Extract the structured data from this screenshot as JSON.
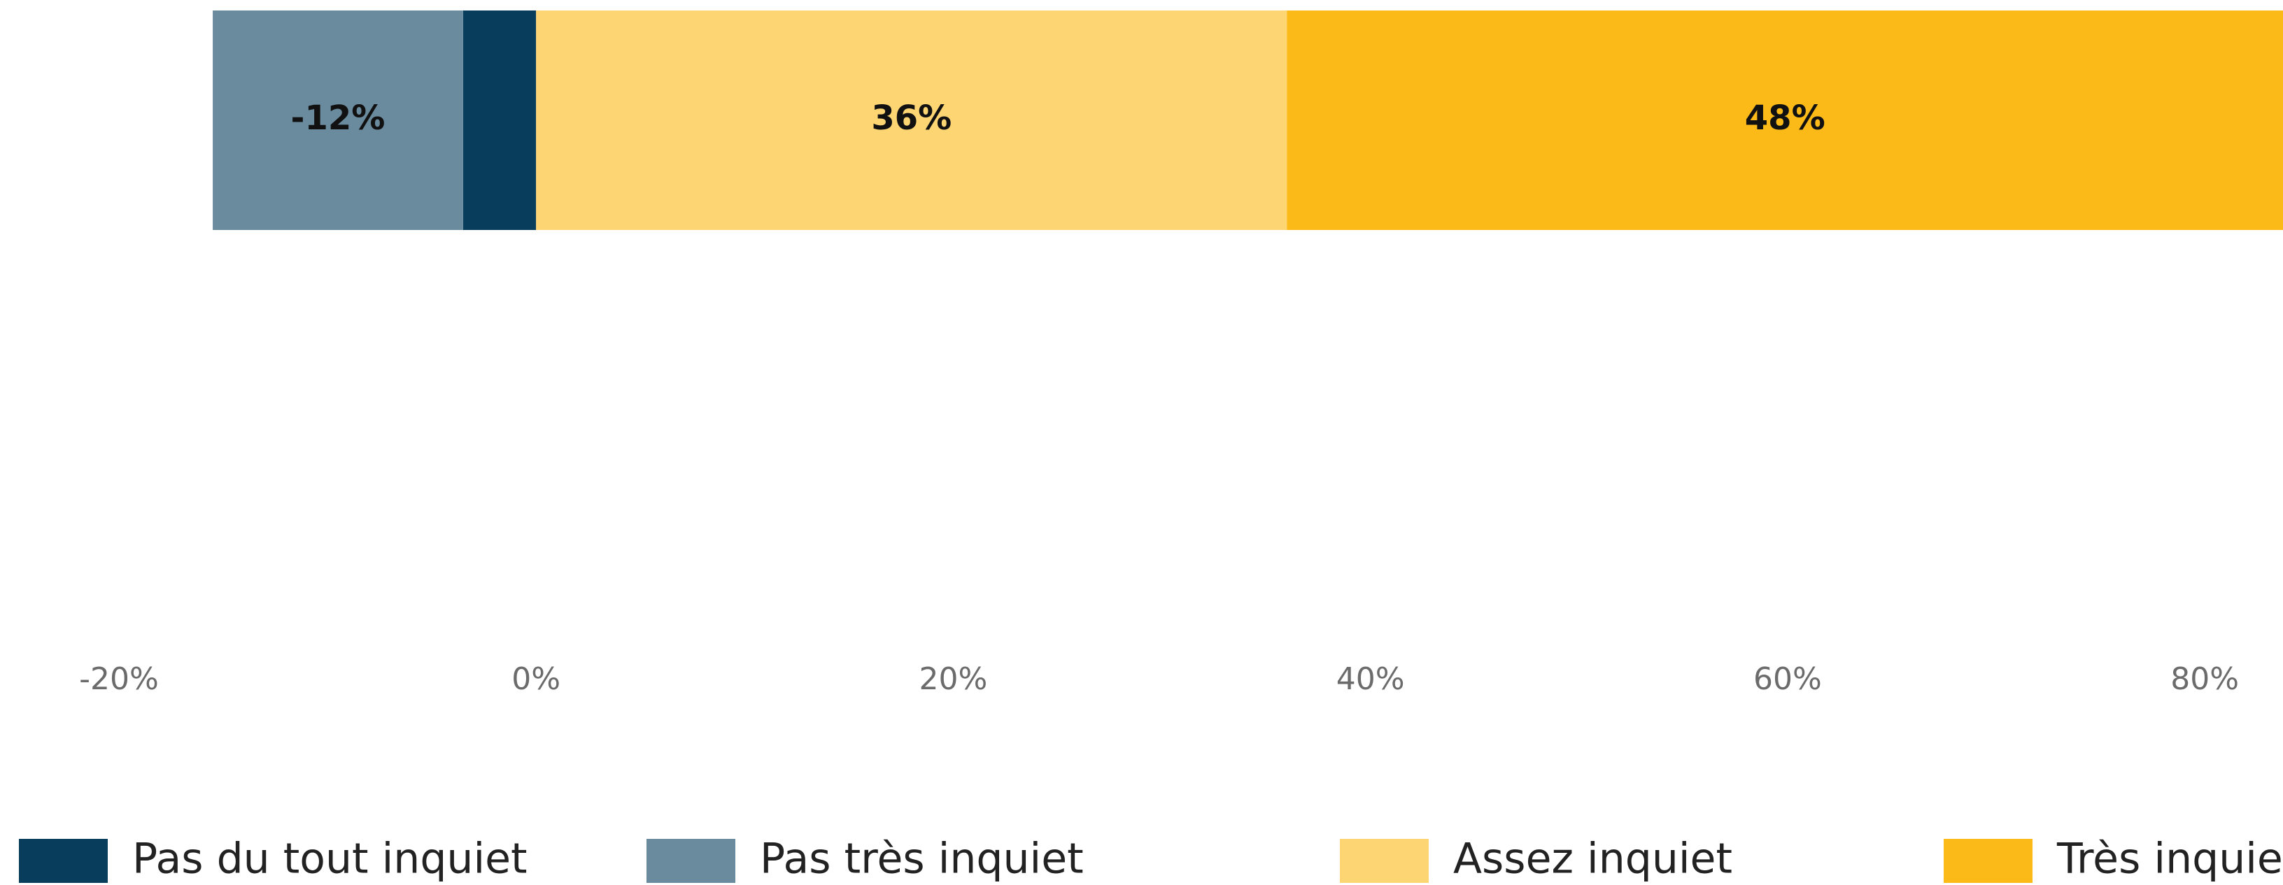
{
  "chart_data": {
    "type": "diverging_bar",
    "categories": [
      null
    ],
    "series": [
      {
        "name": "Pas du tout inquiet",
        "color": "#083d5c",
        "values": [
          -3.5
        ]
      },
      {
        "name": "Pas très inquiet",
        "color": "#6a8a9e",
        "values": [
          -12
        ],
        "value_labels": [
          "-12%"
        ]
      },
      {
        "name": "Assez inquiet",
        "color": "#fdd572",
        "values": [
          36
        ],
        "value_labels": [
          "36%"
        ]
      },
      {
        "name": "Très inquiet",
        "color": "#fcba19",
        "values": [
          48
        ],
        "value_labels": [
          "48%"
        ]
      }
    ],
    "xlim": [
      -25.7,
      83.75
    ],
    "xticks": [
      {
        "value": -20,
        "label": "-20%"
      },
      {
        "value": 0,
        "label": "0%"
      },
      {
        "value": 20,
        "label": "20%"
      },
      {
        "value": 40,
        "label": "40%"
      },
      {
        "value": 60,
        "label": "60%"
      },
      {
        "value": 80,
        "label": "80%"
      }
    ],
    "grid": false,
    "legend": "bottom"
  }
}
